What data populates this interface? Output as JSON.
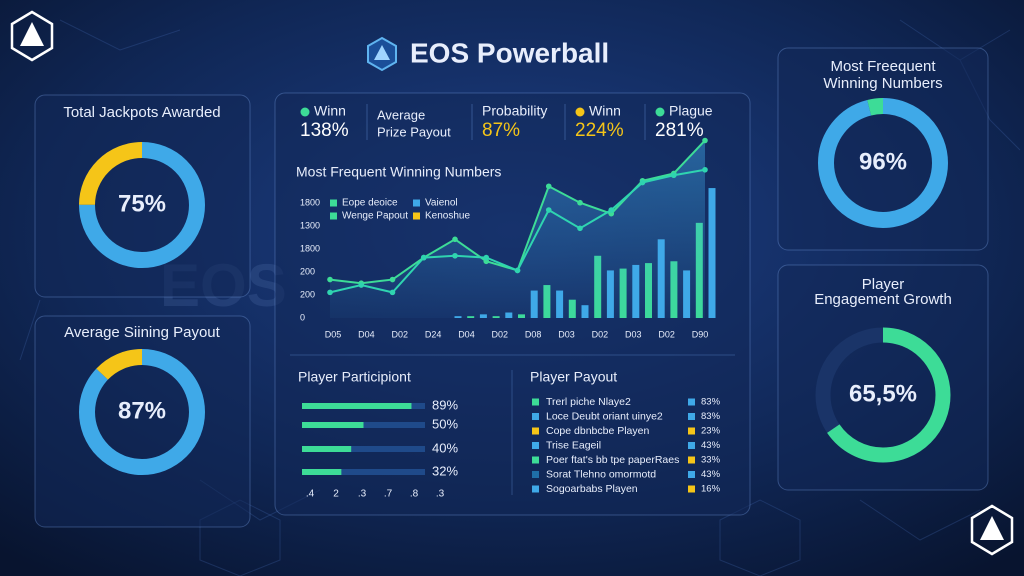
{
  "header": {
    "title": "EOS Powerball"
  },
  "watermark": "EOS",
  "side_donuts": [
    {
      "title": [
        "Total Jackpots Awarded"
      ],
      "value": 75,
      "value_label": "75%",
      "color": "#3fa9e8",
      "accent": "#f5c518"
    },
    {
      "title": [
        "Average Siining Payout"
      ],
      "value": 87,
      "value_label": "87%",
      "color": "#3fa9e8",
      "accent": "#f5c518"
    },
    {
      "title": [
        "Most Freequent",
        "Winning Numbers"
      ],
      "value": 96,
      "value_label": "96%",
      "color": "#3fa9e8",
      "accent": "#3ddc97"
    },
    {
      "title": [
        "Player",
        "Engagement Growth"
      ],
      "value": 65.5,
      "value_label": "65,5%",
      "color": "#3ddc97",
      "accent": "#3ddc97"
    }
  ],
  "stats": [
    {
      "label": [
        "Winn"
      ],
      "value": "138%",
      "dot": "#3ddc97",
      "value_color": "#ffffff"
    },
    {
      "label": [
        "Average",
        "Prize Payout"
      ]
    },
    {
      "label": [
        "Probability"
      ],
      "value": "87%",
      "value_color": "#f5c518"
    },
    {
      "label": [
        "Winn"
      ],
      "value": "224%",
      "dot": "#f5c518",
      "value_color": "#f5c518"
    },
    {
      "label": [
        "Plague"
      ],
      "value": "281%",
      "dot": "#3ddc97",
      "value_color": "#ffffff"
    }
  ],
  "trend_chart": {
    "title": "Most Frequent Winning Numbers",
    "y_labels": [
      "1800",
      "1300",
      "1800",
      "200",
      "200",
      "0"
    ],
    "ylim": [
      0,
      100
    ],
    "legend": [
      {
        "name": "Eope deoice",
        "color": "#3ddc97"
      },
      {
        "name": "Vaienol",
        "color": "#3fa9e8"
      },
      {
        "name": "Wenge Papout",
        "color": "#3ddc97"
      },
      {
        "name": "Kenoshue",
        "color": "#f5c518"
      }
    ],
    "x_labels": [
      "D05",
      "D04",
      "D02",
      "D24",
      "D04",
      "D02",
      "D08",
      "D03",
      "D02",
      "D03",
      "D02",
      "D90"
    ],
    "lines": [
      {
        "color": "#3ddc97",
        "values": [
          21,
          19,
          21,
          33,
          43,
          31,
          26,
          72,
          63,
          57,
          75,
          79,
          97
        ]
      },
      {
        "color": "#2fd4b0",
        "values": [
          14,
          18,
          14,
          33,
          34,
          33,
          26,
          59,
          49,
          59,
          74,
          78,
          81
        ]
      }
    ],
    "bar_colors": [
      "#3fa9e8",
      "#3ddc97"
    ],
    "bars": [
      1,
      1,
      2,
      1,
      3,
      2,
      15,
      18,
      15,
      10,
      7,
      34,
      26,
      27,
      29,
      30,
      43,
      31,
      26,
      52,
      71
    ]
  },
  "participation": {
    "title": "Player Participiont",
    "color": "#3ddc97",
    "rows": [
      {
        "value": 89,
        "label": "89%"
      },
      {
        "value": 50,
        "label": "50%"
      },
      {
        "value": 40,
        "label": "40%"
      },
      {
        "value": 32,
        "label": "32%"
      }
    ],
    "axis_labels": [
      ".4",
      "2",
      ".3",
      ".7",
      ".8",
      ".3"
    ]
  },
  "payout": {
    "title": "Player Payout",
    "rows": [
      {
        "name": "Trerl piche Nlaye2",
        "label": "83%",
        "color": "#3ddc97",
        "mark": "#3fa9e8"
      },
      {
        "name": "Loce Deubt oriant uinye2",
        "label": "83%",
        "color": "#3fa9e8",
        "mark": "#3fa9e8"
      },
      {
        "name": "Cope dbnbcbe Playen",
        "label": "23%",
        "color": "#f5c518",
        "mark": "#f5c518"
      },
      {
        "name": "Trise Eageil",
        "label": "43%",
        "color": "#3fa9e8",
        "mark": "#3fa9e8"
      },
      {
        "name": "Poer ftat's bb tpe paperRaes",
        "label": "33%",
        "color": "#3ddc97",
        "mark": "#f5c518"
      },
      {
        "name": "Sorat Tlehno omormotd",
        "label": "43%",
        "color": "#1f6fa8",
        "mark": "#3fa9e8"
      },
      {
        "name": "Sogoarbabs Playen",
        "label": "16%",
        "color": "#3fa9e8",
        "mark": "#f5c518"
      }
    ]
  }
}
